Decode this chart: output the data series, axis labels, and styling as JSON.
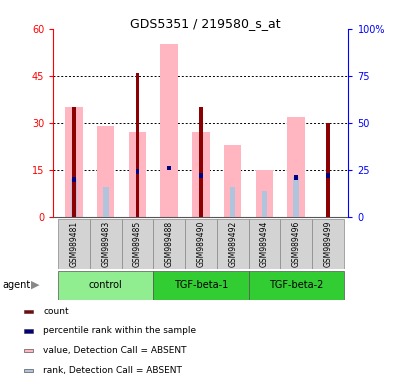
{
  "title": "GDS5351 / 219580_s_at",
  "samples": [
    "GSM989481",
    "GSM989483",
    "GSM989485",
    "GSM989488",
    "GSM989490",
    "GSM989492",
    "GSM989494",
    "GSM989496",
    "GSM989499"
  ],
  "groups": [
    {
      "name": "control",
      "color": "#90ee90",
      "samples": [
        0,
        1,
        2
      ]
    },
    {
      "name": "TGF-beta-1",
      "color": "#32cd32",
      "samples": [
        3,
        4,
        5
      ]
    },
    {
      "name": "TGF-beta-2",
      "color": "#32cd32",
      "samples": [
        6,
        7,
        8
      ]
    }
  ],
  "count_values": [
    35,
    0,
    46,
    0,
    35,
    0,
    0,
    0,
    30
  ],
  "rank_values": [
    20,
    0,
    24,
    26,
    22,
    0,
    0,
    21,
    22
  ],
  "absent_value": [
    35,
    29,
    27,
    55,
    27,
    23,
    15,
    32,
    0
  ],
  "absent_rank": [
    20,
    16,
    0,
    0,
    0,
    16,
    14,
    21,
    0
  ],
  "ylim_left": [
    0,
    60
  ],
  "ylim_right": [
    0,
    100
  ],
  "yticks_left": [
    0,
    15,
    30,
    45,
    60
  ],
  "yticks_right": [
    0,
    25,
    50,
    75,
    100
  ],
  "color_count": "#8b0000",
  "color_rank": "#000080",
  "color_absent_value": "#ffb6c1",
  "color_absent_rank": "#b0c4de",
  "background_color": "#ffffff",
  "legend_items": [
    {
      "color": "#8b0000",
      "label": "count"
    },
    {
      "color": "#000080",
      "label": "percentile rank within the sample"
    },
    {
      "color": "#ffb6c1",
      "label": "value, Detection Call = ABSENT"
    },
    {
      "color": "#b0c4de",
      "label": "rank, Detection Call = ABSENT"
    }
  ]
}
